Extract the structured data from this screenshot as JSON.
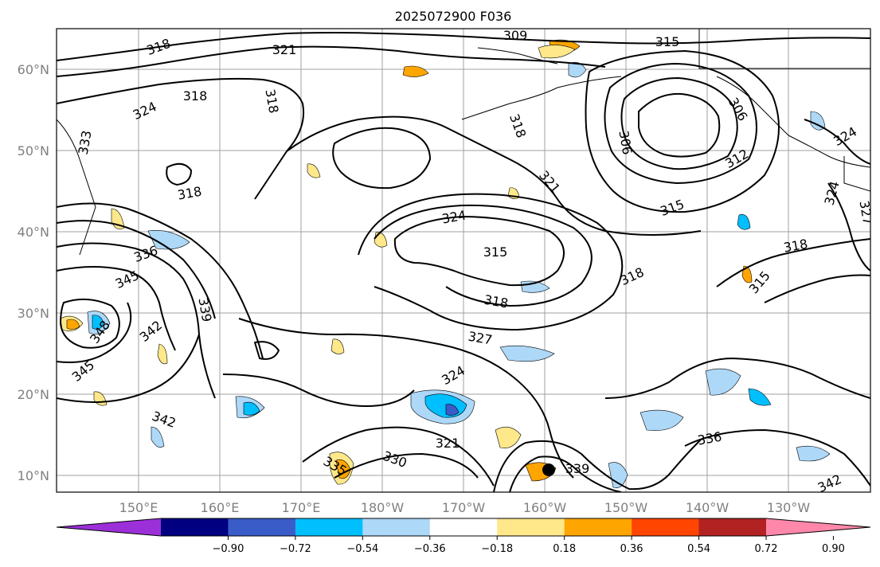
{
  "map": {
    "title": "2025072900 F036",
    "lon_labels": [
      "150°E",
      "160°E",
      "170°E",
      "180°W",
      "170°W",
      "160°W",
      "150°W",
      "140°W",
      "130°W"
    ],
    "lat_labels": [
      "60°N",
      "50°N",
      "40°N",
      "30°N",
      "20°N",
      "10°N"
    ],
    "contour_labels": [
      "318",
      "321",
      "309",
      "315",
      "318",
      "318",
      "324",
      "318",
      "306",
      "333",
      "318",
      "306",
      "312",
      "324",
      "315",
      "321",
      "324",
      "324",
      "315",
      "318",
      "327",
      "336",
      "345",
      "318",
      "315",
      "339",
      "318",
      "342",
      "348",
      "327",
      "345",
      "324",
      "342",
      "321",
      "335",
      "330",
      "339",
      "336",
      "342"
    ]
  },
  "colorbar": {
    "colors": [
      "#9b30d8",
      "#000080",
      "#3a5cc8",
      "#00bfff",
      "#add8f8",
      "#ffffff",
      "#ffe88a",
      "#ffa500",
      "#ff4500",
      "#b22222",
      "#ff88aa"
    ],
    "tick_labels": [
      "−0.90",
      "−0.72",
      "−0.54",
      "−0.36",
      "−0.18",
      "0.18",
      "0.36",
      "0.54",
      "0.72",
      "0.90"
    ]
  }
}
